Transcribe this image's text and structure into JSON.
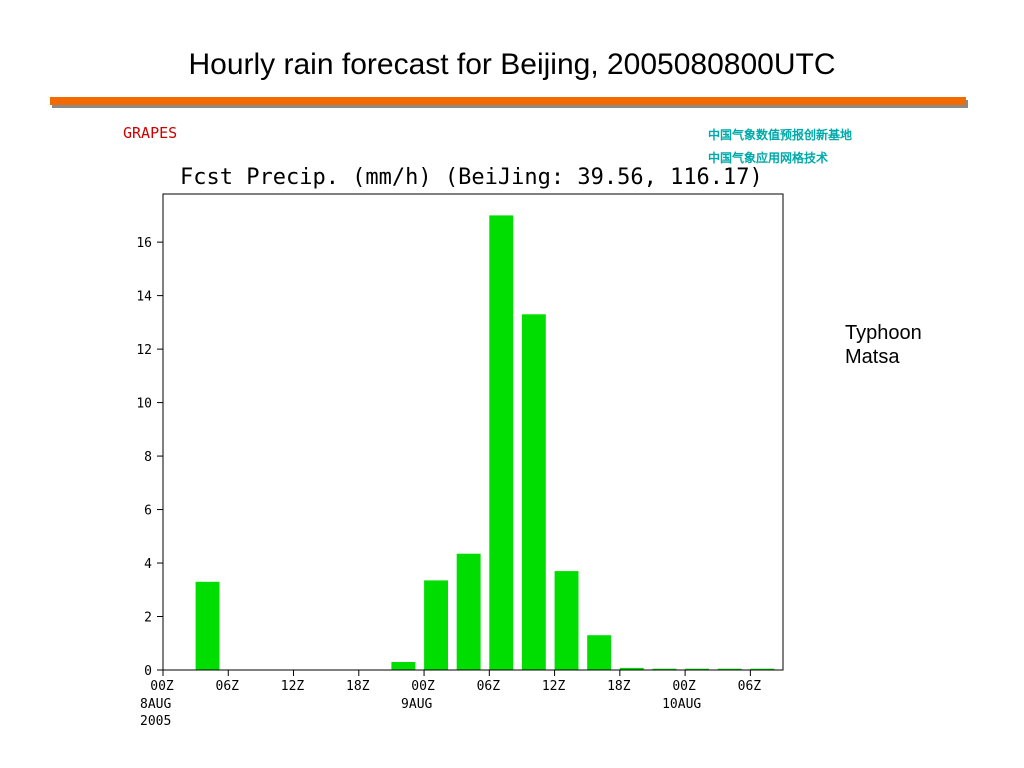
{
  "slide": {
    "title": "Hourly rain forecast for Beijing, 2005080800UTC"
  },
  "header": {
    "model_name": "GRAPES",
    "agency_lines": [
      "中国气象数值预报创新基地",
      "中国气象应用网格技术"
    ]
  },
  "annotation": {
    "lines": [
      "Typhoon",
      "Matsa"
    ]
  },
  "colors": {
    "bar": "#00dd00",
    "model_name": "#cc0000",
    "agency": "#00aaaa",
    "rule": "#f26a00"
  },
  "chart_data": {
    "type": "bar",
    "title": "Fcst Precip. (mm/h) (BeiJing: 39.56, 116.17)",
    "xlabel": "",
    "ylabel": "",
    "ylim": [
      0,
      17.8
    ],
    "yticks": [
      0,
      2,
      4,
      6,
      8,
      10,
      12,
      14,
      16
    ],
    "x_range_hours": [
      0,
      57
    ],
    "x_ticks": [
      {
        "hour": 0,
        "label": "00Z",
        "sub": [
          "8AUG",
          "2005"
        ]
      },
      {
        "hour": 6,
        "label": "06Z",
        "sub": []
      },
      {
        "hour": 12,
        "label": "12Z",
        "sub": []
      },
      {
        "hour": 18,
        "label": "18Z",
        "sub": []
      },
      {
        "hour": 24,
        "label": "00Z",
        "sub": [
          "9AUG"
        ]
      },
      {
        "hour": 30,
        "label": "06Z",
        "sub": []
      },
      {
        "hour": 36,
        "label": "12Z",
        "sub": []
      },
      {
        "hour": 42,
        "label": "18Z",
        "sub": []
      },
      {
        "hour": 48,
        "label": "00Z",
        "sub": [
          "10AUG"
        ]
      },
      {
        "hour": 54,
        "label": "06Z",
        "sub": []
      }
    ],
    "grid": false,
    "bar_hour_width": 2.2,
    "bars": [
      {
        "start": 3,
        "value": 3.3
      },
      {
        "start": 6,
        "value": 0
      },
      {
        "start": 9,
        "value": 0
      },
      {
        "start": 12,
        "value": 0
      },
      {
        "start": 15,
        "value": 0
      },
      {
        "start": 18,
        "value": 0
      },
      {
        "start": 21,
        "value": 0.3
      },
      {
        "start": 24,
        "value": 3.35
      },
      {
        "start": 27,
        "value": 4.35
      },
      {
        "start": 30,
        "value": 17.0
      },
      {
        "start": 33,
        "value": 13.3
      },
      {
        "start": 36,
        "value": 3.7
      },
      {
        "start": 39,
        "value": 1.3
      },
      {
        "start": 42,
        "value": 0.08
      },
      {
        "start": 45,
        "value": 0.05
      },
      {
        "start": 48,
        "value": 0.05
      },
      {
        "start": 51,
        "value": 0.05
      },
      {
        "start": 54,
        "value": 0.05
      }
    ]
  }
}
